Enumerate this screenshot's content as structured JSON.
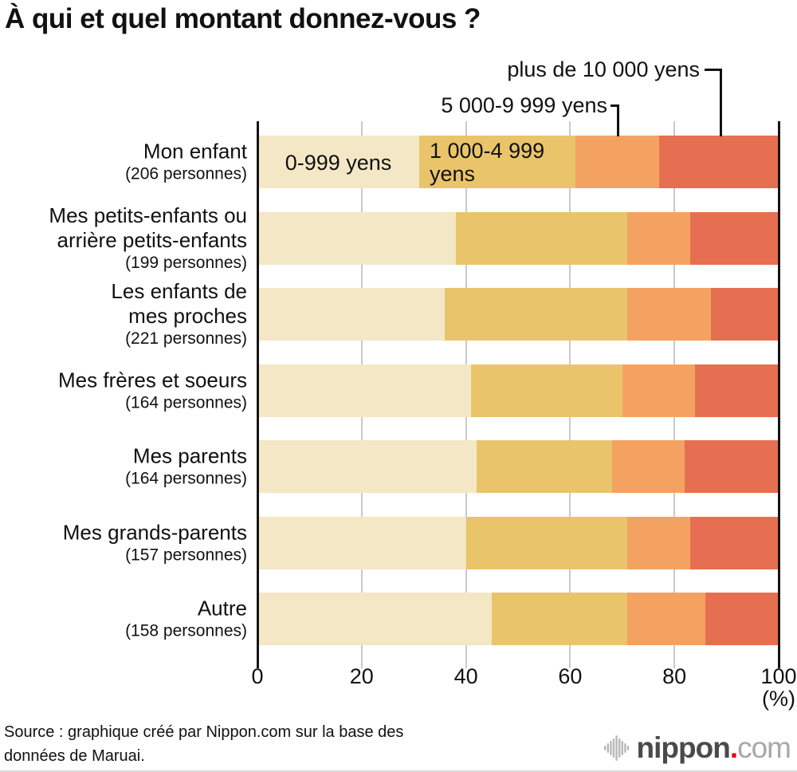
{
  "title": "À qui et quel montant donnez-vous ?",
  "chart_data": {
    "type": "bar",
    "stacked": true,
    "orientation": "horizontal",
    "title": "À qui et quel montant donnez-vous ?",
    "xlabel": "(%)",
    "xlim": [
      0,
      100
    ],
    "x_ticks": [
      "0",
      "20",
      "40",
      "60",
      "80",
      "100"
    ],
    "x_unit_label": "(%)",
    "grid": "vertical gray lines at 20/40/60/80, black frame lines at 0 and 100",
    "legend_position": "callouts above chart and labels inside first bar",
    "categories": [
      "Mon enfant",
      "Mes petits-enfants ou\narrière petits-enfants",
      "Les enfants de\nmes proches",
      "Mes frères et soeurs",
      "Mes parents",
      "Mes grands-parents",
      "Autre"
    ],
    "counts": [
      "(206 personnes)",
      "(199 personnes)",
      "(221 personnes)",
      "(164 personnes)",
      "(164 personnes)",
      "(157 personnes)",
      "(158 personnes)"
    ],
    "series": [
      {
        "name": "0-999 yens",
        "color": "#f4e7c5",
        "values": [
          31,
          38,
          36,
          41,
          42,
          40,
          45
        ]
      },
      {
        "name": "1 000-4 999 yens",
        "color": "#e9c46a",
        "values": [
          30,
          33,
          35,
          29,
          26,
          31,
          26
        ]
      },
      {
        "name": "5 000-9 999 yens",
        "color": "#f4a261",
        "values": [
          16,
          12,
          16,
          14,
          14,
          12,
          15
        ]
      },
      {
        "name": "plus de 10 000 yens",
        "color": "#e76f51",
        "values": [
          23,
          17,
          13,
          16,
          18,
          17,
          14
        ]
      }
    ]
  },
  "footer": {
    "source_line1": "Source : graphique créé par Nippon.com sur la base des",
    "source_line2": "données de Maruai.",
    "logo": {
      "nippon": "nippon",
      "dot": ".",
      "com": "com"
    }
  }
}
